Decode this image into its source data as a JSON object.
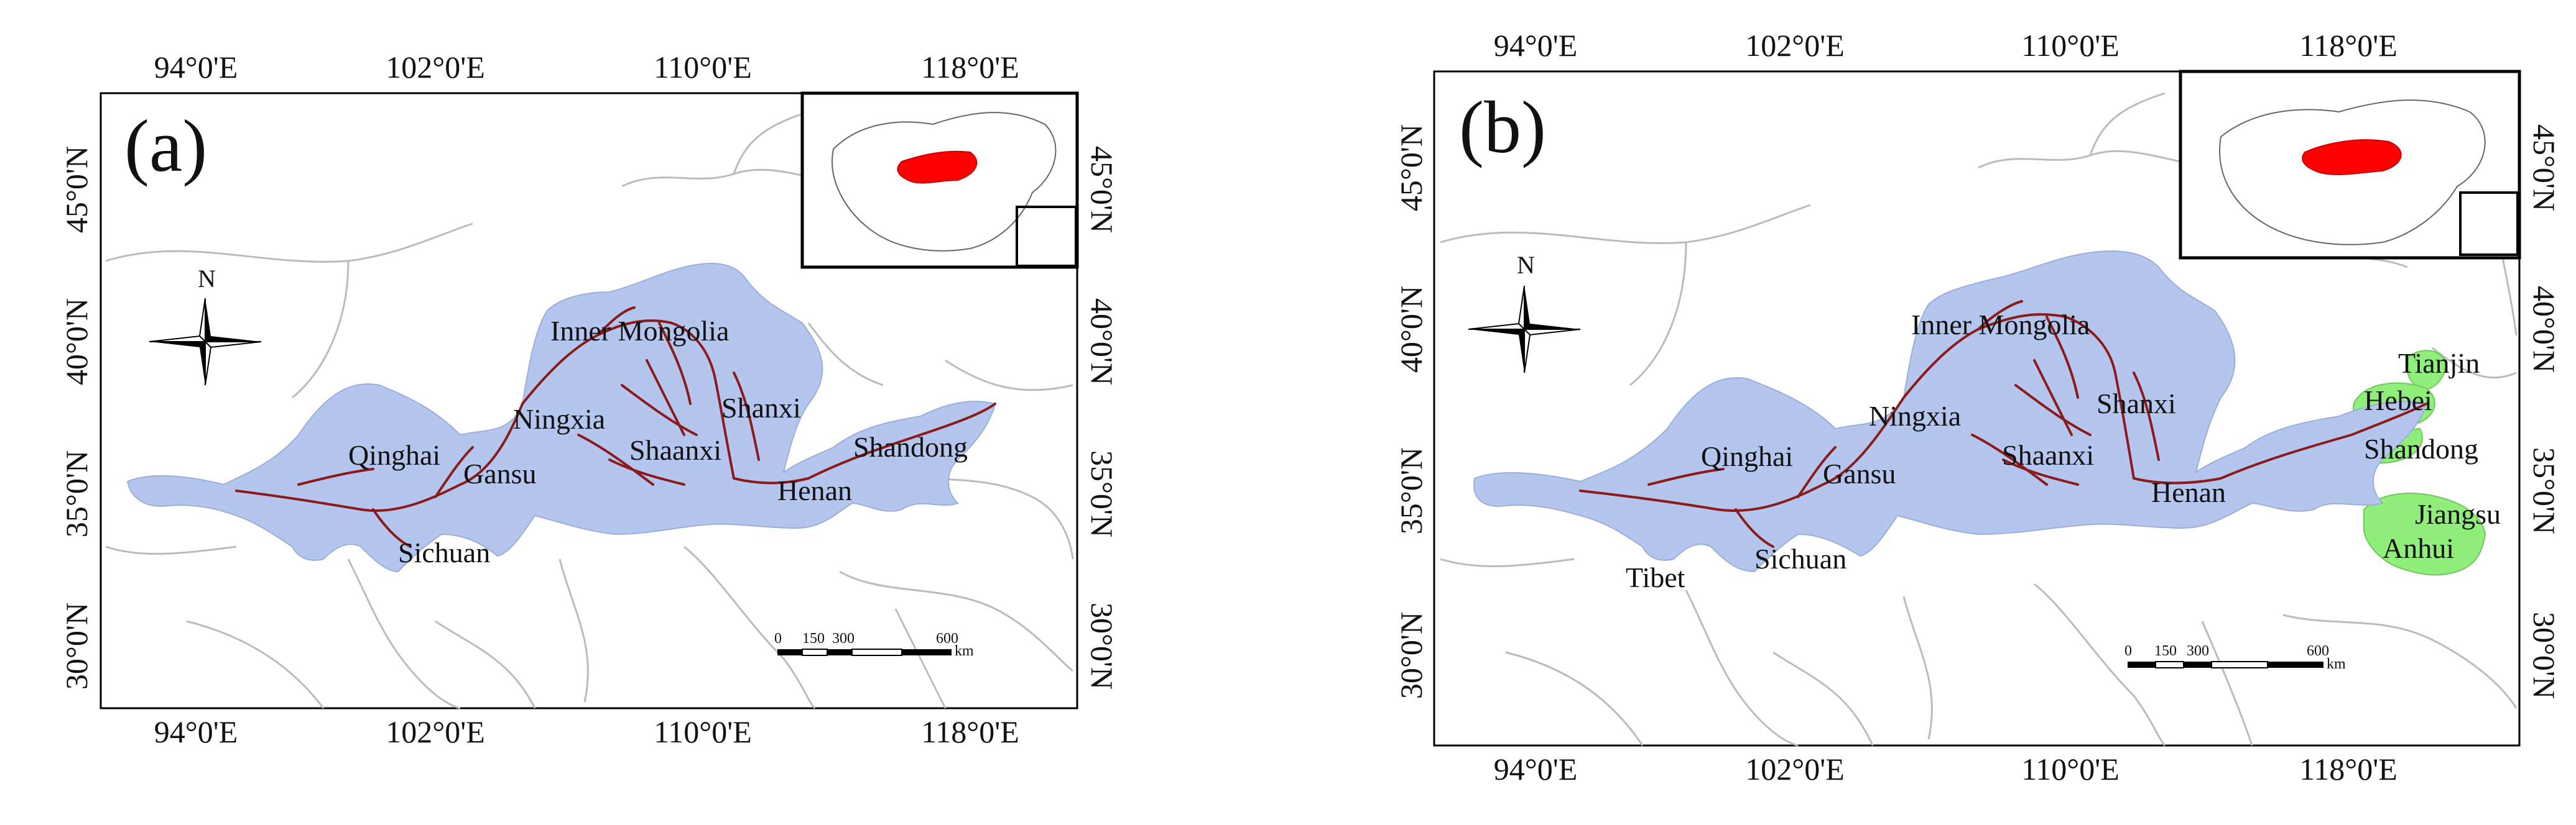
{
  "colors": {
    "basin": "#b4c6ee",
    "river": "#8b1a1a",
    "highlight": "#90ee7a",
    "inset_region": "#ff0000",
    "boundary": "#bbbbbb",
    "frame": "#000000"
  },
  "panels": [
    {
      "id": "a",
      "label": "(a)",
      "lon_ticks": [
        "94°0'E",
        "102°0'E",
        "110°0'E",
        "118°0'E"
      ],
      "lat_ticks": [
        "45°0'N",
        "40°0'N",
        "35°0'N",
        "30°0'N"
      ],
      "north_label": "N",
      "scale_numbers": [
        "0",
        "150",
        "300",
        "600"
      ],
      "scale_unit": "km",
      "provinces": [
        "Inner Mongolia",
        "Ningxia",
        "Shanxi",
        "Qinghai",
        "Gansu",
        "Shaanxi",
        "Shandong",
        "Henan",
        "Sichuan"
      ]
    },
    {
      "id": "b",
      "label": "(b)",
      "lon_ticks": [
        "94°0'E",
        "102°0'E",
        "110°0'E",
        "118°0'E"
      ],
      "lat_ticks": [
        "45°0'N",
        "40°0'N",
        "35°0'N",
        "30°0'N"
      ],
      "north_label": "N",
      "scale_numbers": [
        "0",
        "150",
        "300",
        "600"
      ],
      "scale_unit": "km",
      "provinces": [
        "Inner Mongolia",
        "Tianjin",
        "Hebei",
        "Ningxia",
        "Shanxi",
        "Qinghai",
        "Gansu",
        "Shaanxi",
        "Shandong",
        "Henan",
        "Jiangsu",
        "Anhui",
        "Sichuan",
        "Tibet"
      ],
      "highlighted_provinces": [
        "Tianjin",
        "Hebei",
        "Shandong",
        "Jiangsu",
        "Anhui"
      ]
    }
  ]
}
